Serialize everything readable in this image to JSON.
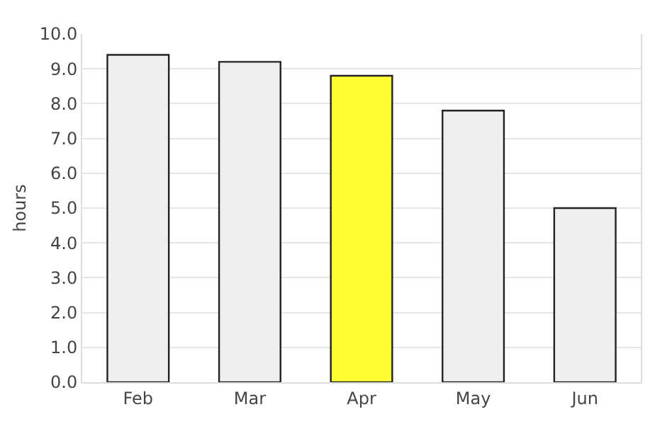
{
  "chart_data": {
    "type": "bar",
    "ylabel": "hours",
    "categories": [
      "Feb",
      "Mar",
      "Apr",
      "May",
      "Jun"
    ],
    "values": [
      9.4,
      9.2,
      8.8,
      7.8,
      5.0
    ],
    "colors": [
      "#eeeeee",
      "#eeeeee",
      "#ffff33",
      "#eeeeee",
      "#eeeeee"
    ],
    "ylim": [
      0,
      10
    ],
    "yticks": [
      {
        "value": 0,
        "label": "0.0"
      },
      {
        "value": 1,
        "label": "1.0"
      },
      {
        "value": 2,
        "label": "2.0"
      },
      {
        "value": 3,
        "label": "3.0"
      },
      {
        "value": 4,
        "label": "4.0"
      },
      {
        "value": 5,
        "label": "5.0"
      },
      {
        "value": 6,
        "label": "6.0"
      },
      {
        "value": 7,
        "label": "7.0"
      },
      {
        "value": 8,
        "label": "8.0"
      },
      {
        "value": 9,
        "label": "9.0"
      },
      {
        "value": 10,
        "label": "10.0"
      }
    ],
    "grid": "y",
    "legend": false
  }
}
